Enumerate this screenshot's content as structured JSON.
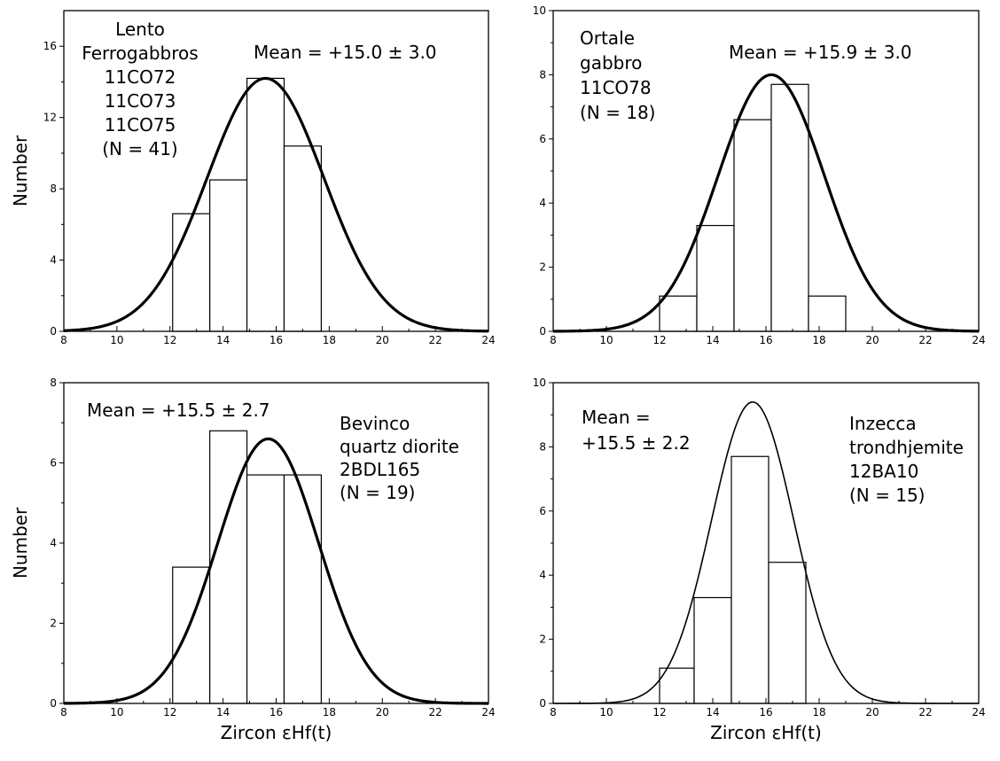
{
  "chart_data": [
    {
      "type": "bar",
      "panel": "top-left",
      "xlim": [
        8,
        24
      ],
      "ylim": [
        0,
        18
      ],
      "xticks": [
        8,
        10,
        12,
        14,
        16,
        18,
        20,
        22,
        24
      ],
      "yticks": [
        0,
        4,
        8,
        12,
        16
      ],
      "bins": [
        {
          "x0": 12.1,
          "x1": 13.5,
          "value": 6.6
        },
        {
          "x0": 13.5,
          "x1": 14.9,
          "value": 8.5
        },
        {
          "x0": 14.9,
          "x1": 16.3,
          "value": 14.2
        },
        {
          "x0": 16.3,
          "x1": 17.7,
          "value": 10.4
        }
      ],
      "curve": {
        "mu": 15.6,
        "sigma": 2.2,
        "peak": 14.2,
        "x_range": [
          8,
          24
        ]
      },
      "thick_curve": true,
      "ylabel": "Number",
      "xlabel": "",
      "mean_label": "Mean = +15.0 ± 3.0",
      "annotation_lines": [
        "Lento",
        "Ferrogabbros",
        "11CO72",
        "11CO73",
        "11CO75",
        "(N = 41)"
      ]
    },
    {
      "type": "bar",
      "panel": "top-right",
      "xlim": [
        8,
        24
      ],
      "ylim": [
        0,
        10
      ],
      "xticks": [
        8,
        10,
        12,
        14,
        16,
        18,
        20,
        22,
        24
      ],
      "yticks": [
        0,
        2,
        4,
        6,
        8,
        10
      ],
      "bins": [
        {
          "x0": 12.0,
          "x1": 13.4,
          "value": 1.1
        },
        {
          "x0": 13.4,
          "x1": 14.8,
          "value": 3.3
        },
        {
          "x0": 14.8,
          "x1": 16.2,
          "value": 6.6
        },
        {
          "x0": 16.2,
          "x1": 17.6,
          "value": 7.7
        },
        {
          "x0": 17.6,
          "x1": 19.0,
          "value": 1.1
        }
      ],
      "curve": {
        "mu": 16.2,
        "sigma": 2.0,
        "peak": 8.0,
        "x_range": [
          8,
          24
        ]
      },
      "thick_curve": true,
      "ylabel": "",
      "xlabel": "",
      "mean_label": "Mean = +15.9 ± 3.0",
      "annotation_lines": [
        "Ortale",
        "gabbro",
        "11CO78",
        "(N = 18)"
      ]
    },
    {
      "type": "bar",
      "panel": "bottom-left",
      "xlim": [
        8,
        24
      ],
      "ylim": [
        0,
        8
      ],
      "xticks": [
        8,
        10,
        12,
        14,
        16,
        18,
        20,
        22,
        24
      ],
      "yticks": [
        0,
        2,
        4,
        6,
        8
      ],
      "bins": [
        {
          "x0": 12.1,
          "x1": 13.5,
          "value": 3.4
        },
        {
          "x0": 13.5,
          "x1": 14.9,
          "value": 6.8
        },
        {
          "x0": 14.9,
          "x1": 16.3,
          "value": 5.7
        },
        {
          "x0": 16.3,
          "x1": 17.7,
          "value": 5.7
        }
      ],
      "curve": {
        "mu": 15.7,
        "sigma": 1.9,
        "peak": 6.6,
        "x_range": [
          8,
          24
        ]
      },
      "thick_curve": true,
      "ylabel": "Number",
      "xlabel": "Zircon εHf(t)",
      "mean_label": "Mean = +15.5 ± 2.7",
      "annotation_lines": [
        "Bevinco",
        "quartz diorite",
        "2BDL165",
        "(N = 19)"
      ]
    },
    {
      "type": "bar",
      "panel": "bottom-right",
      "xlim": [
        8,
        24
      ],
      "ylim": [
        0,
        10
      ],
      "xticks": [
        8,
        10,
        12,
        14,
        16,
        18,
        20,
        22,
        24
      ],
      "yticks": [
        0,
        2,
        4,
        6,
        8,
        10
      ],
      "bins": [
        {
          "x0": 12.0,
          "x1": 13.3,
          "value": 1.1
        },
        {
          "x0": 13.3,
          "x1": 14.7,
          "value": 3.3
        },
        {
          "x0": 14.7,
          "x1": 16.1,
          "value": 7.7
        },
        {
          "x0": 16.1,
          "x1": 17.5,
          "value": 4.4
        }
      ],
      "curve": {
        "mu": 15.5,
        "sigma": 1.55,
        "peak": 9.4,
        "x_range": [
          8,
          24
        ]
      },
      "thick_curve": false,
      "ylabel": "",
      "xlabel": "Zircon εHf(t)",
      "mean_label_lines": [
        "Mean =",
        "+15.5 ± 2.2"
      ],
      "annotation_lines": [
        "Inzecca",
        "trondhjemite",
        "12BA10",
        "(N = 15)"
      ]
    }
  ]
}
